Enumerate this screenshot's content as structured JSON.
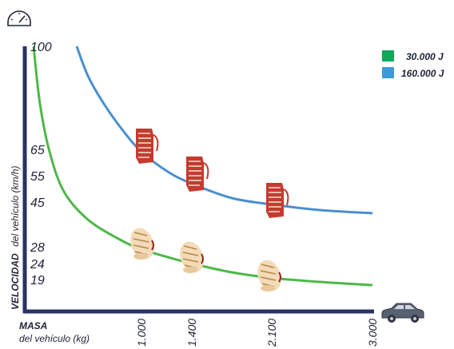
{
  "chart_data": {
    "type": "line",
    "ylabel_bold": "VELOCIDAD",
    "ylabel_rest": "del vehículo (km/h)",
    "xlabel_bold": "MASA",
    "xlabel_rest": "del vehículo (kg)",
    "xlim": [
      700,
      3000
    ],
    "ylim": [
      10,
      100
    ],
    "x_tick_labels": [
      {
        "value": 1000,
        "label": "1.000"
      },
      {
        "value": 1400,
        "label": "1.400"
      },
      {
        "value": 2100,
        "label": "2.100"
      },
      {
        "value": 3000,
        "label": "3.000"
      }
    ],
    "y_tick_labels": [
      {
        "value": 100,
        "label": "100"
      },
      {
        "value": 65,
        "label": "65"
      },
      {
        "value": 55,
        "label": "55"
      },
      {
        "value": 45,
        "label": "45"
      },
      {
        "value": 28,
        "label": "28"
      },
      {
        "value": 24,
        "label": "24"
      },
      {
        "value": 19,
        "label": "19"
      }
    ],
    "series": [
      {
        "name": "30.000 J",
        "color": "#4cb848",
        "x": [
          720,
          800,
          900,
          1000,
          1200,
          1400,
          1800,
          2100,
          2500,
          3000
        ],
        "values": [
          99,
          81,
          61,
          28,
          25.5,
          24,
          21,
          19,
          18,
          17
        ]
      },
      {
        "name": "160.000 J",
        "color": "#4a8fcf",
        "x": [
          1000,
          1100,
          1200,
          1400,
          1700,
          2100,
          2500,
          3000
        ],
        "values": [
          65,
          61,
          58,
          55,
          50,
          45,
          43,
          41
        ]
      }
    ],
    "markers": [
      {
        "series": 1,
        "x": 1000,
        "y": 65
      },
      {
        "series": 1,
        "x": 1400,
        "y": 55
      },
      {
        "series": 1,
        "x": 2100,
        "y": 45
      },
      {
        "series": 0,
        "x": 1000,
        "y": 28
      },
      {
        "series": 0,
        "x": 1400,
        "y": 24
      },
      {
        "series": 0,
        "x": 2100,
        "y": 19
      }
    ],
    "legend_position": "top-right",
    "grid": false
  },
  "icons": {
    "top_left": "speedometer-icon",
    "bottom_right": "car-icon",
    "markers": "impact-dummy-icon"
  }
}
